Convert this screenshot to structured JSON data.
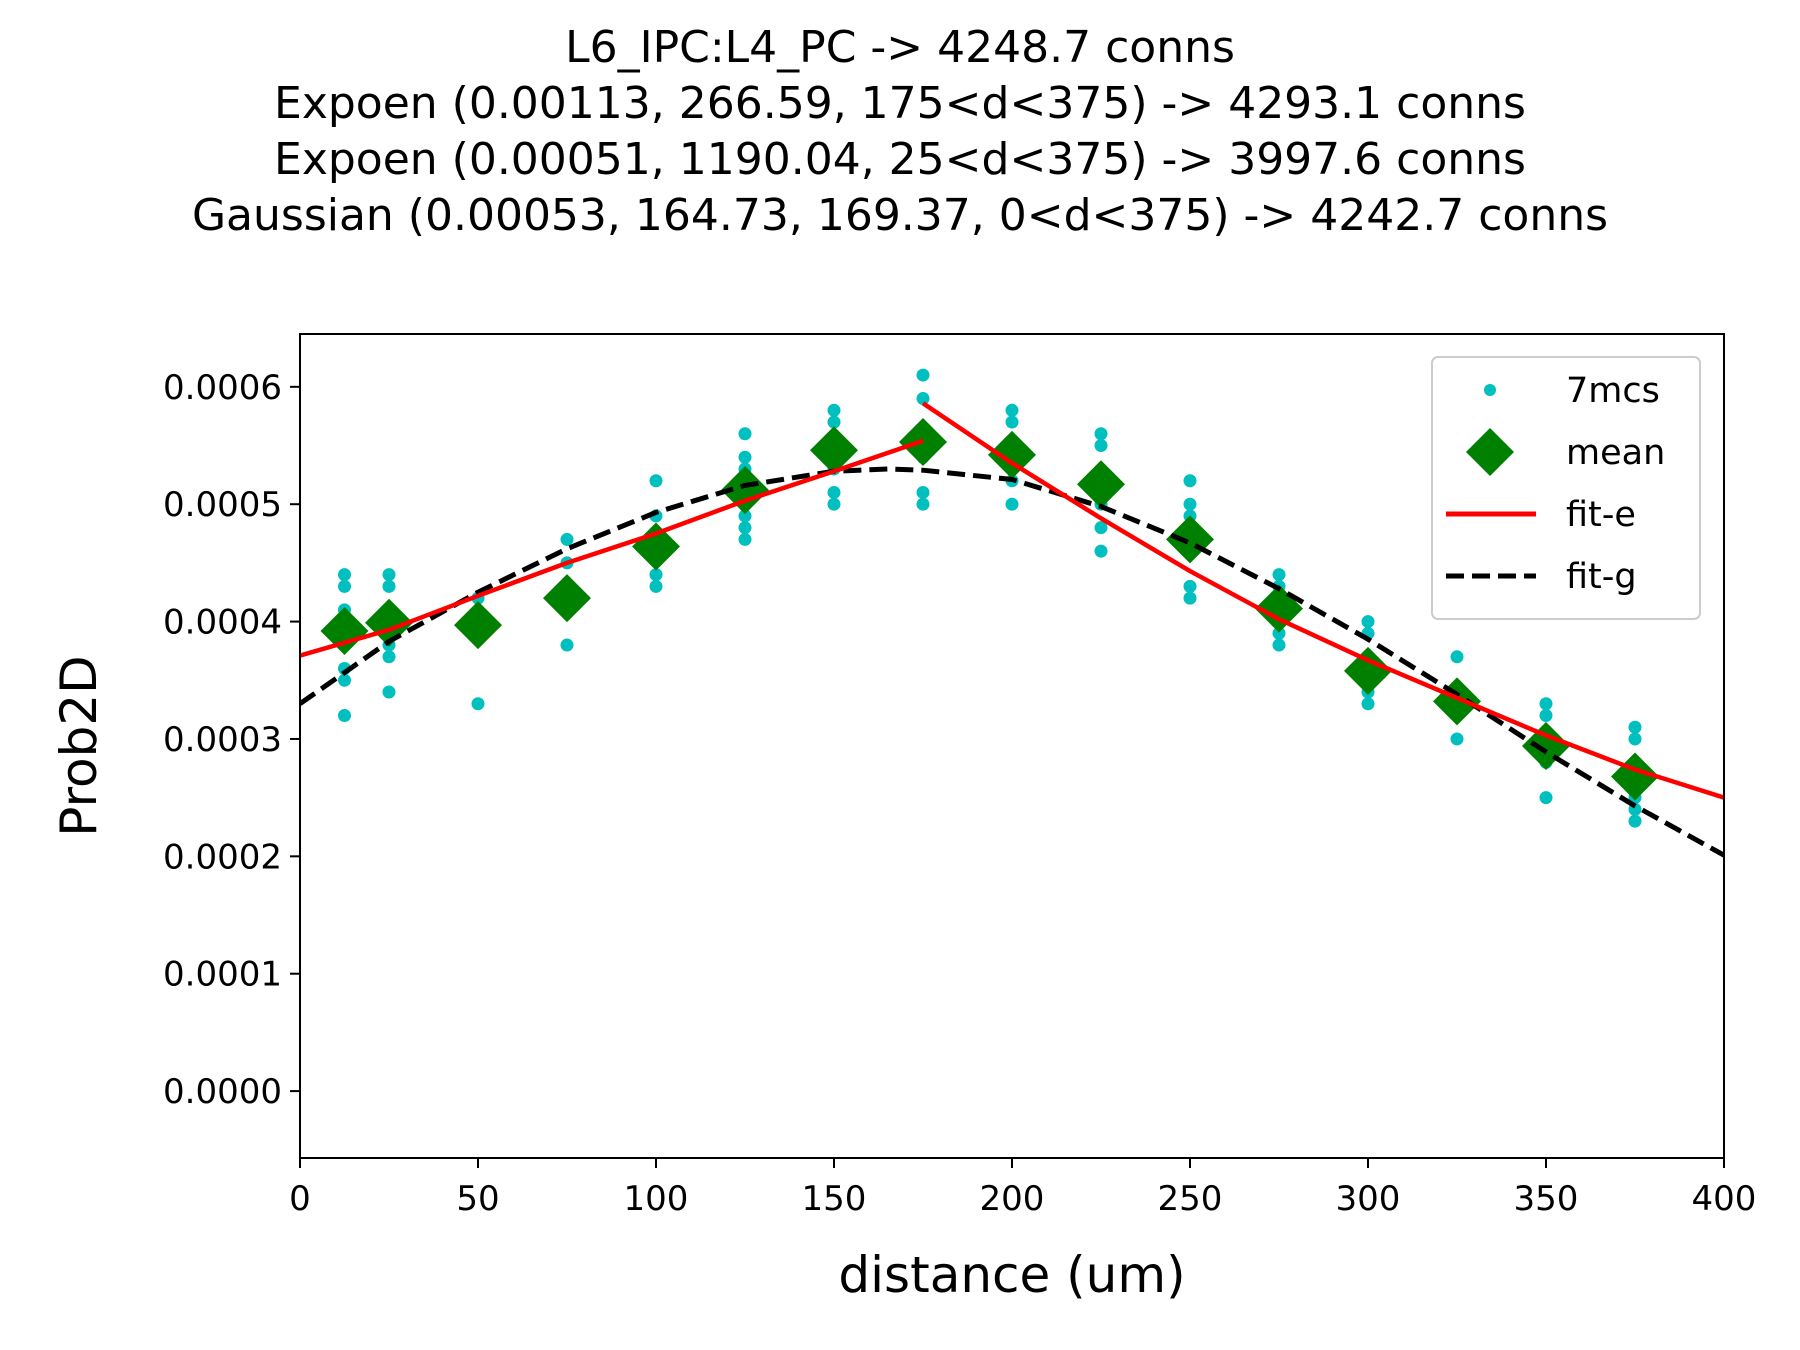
{
  "chart_data": {
    "type": "scatter",
    "title_lines": [
      "L6_IPC:L4_PC -> 4248.7 conns",
      "Expoen (0.00113, 266.59, 175<d<375) -> 4293.1 conns",
      "Expoen (0.00051, 1190.04, 25<d<375) -> 3997.6 conns",
      "Gaussian (0.00053, 164.73, 169.37, 0<d<375) -> 4242.7 conns"
    ],
    "xlabel": "distance (um)",
    "ylabel": "Prob2D",
    "xlim": [
      0,
      400
    ],
    "ylim": [
      -5.7e-05,
      0.000645
    ],
    "xticks": [
      0,
      50,
      100,
      150,
      200,
      250,
      300,
      350,
      400
    ],
    "yticks": [
      0.0,
      0.0001,
      0.0002,
      0.0003,
      0.0004,
      0.0005,
      0.0006
    ],
    "ytick_labels": [
      "0.0000",
      "0.0001",
      "0.0002",
      "0.0003",
      "0.0004",
      "0.0005",
      "0.0006"
    ],
    "legend_position": "upper-right",
    "grid": false,
    "series": [
      {
        "name": "7mcs",
        "kind": "scatter",
        "color": "#00bfbf",
        "points": [
          [
            12.5,
            0.00044
          ],
          [
            12.5,
            0.00043
          ],
          [
            12.5,
            0.00041
          ],
          [
            12.5,
            0.00036
          ],
          [
            12.5,
            0.00035
          ],
          [
            12.5,
            0.00032
          ],
          [
            25,
            0.00044
          ],
          [
            25,
            0.00043
          ],
          [
            25,
            0.00041
          ],
          [
            25,
            0.00038
          ],
          [
            25,
            0.00037
          ],
          [
            25,
            0.00034
          ],
          [
            50,
            0.00042
          ],
          [
            50,
            0.0004
          ],
          [
            50,
            0.00039
          ],
          [
            50,
            0.00033
          ],
          [
            75,
            0.00047
          ],
          [
            75,
            0.00045
          ],
          [
            75,
            0.00042
          ],
          [
            75,
            0.00038
          ],
          [
            100,
            0.00052
          ],
          [
            100,
            0.00049
          ],
          [
            100,
            0.00047
          ],
          [
            100,
            0.00046
          ],
          [
            100,
            0.00044
          ],
          [
            100,
            0.00043
          ],
          [
            125,
            0.00056
          ],
          [
            125,
            0.00054
          ],
          [
            125,
            0.00053
          ],
          [
            125,
            0.00051
          ],
          [
            125,
            0.00049
          ],
          [
            125,
            0.00048
          ],
          [
            125,
            0.00047
          ],
          [
            150,
            0.00058
          ],
          [
            150,
            0.00057
          ],
          [
            150,
            0.00055
          ],
          [
            150,
            0.00053
          ],
          [
            150,
            0.00051
          ],
          [
            150,
            0.0005
          ],
          [
            175,
            0.00061
          ],
          [
            175,
            0.00059
          ],
          [
            175,
            0.00056
          ],
          [
            175,
            0.00054
          ],
          [
            175,
            0.00051
          ],
          [
            175,
            0.0005
          ],
          [
            200,
            0.00058
          ],
          [
            200,
            0.00057
          ],
          [
            200,
            0.00055
          ],
          [
            200,
            0.00054
          ],
          [
            200,
            0.00052
          ],
          [
            200,
            0.0005
          ],
          [
            225,
            0.00056
          ],
          [
            225,
            0.00055
          ],
          [
            225,
            0.00052
          ],
          [
            225,
            0.0005
          ],
          [
            225,
            0.00048
          ],
          [
            225,
            0.00046
          ],
          [
            250,
            0.00052
          ],
          [
            250,
            0.0005
          ],
          [
            250,
            0.00049
          ],
          [
            250,
            0.00047
          ],
          [
            250,
            0.00043
          ],
          [
            250,
            0.00042
          ],
          [
            275,
            0.00044
          ],
          [
            275,
            0.00043
          ],
          [
            275,
            0.00041
          ],
          [
            275,
            0.00039
          ],
          [
            275,
            0.00038
          ],
          [
            300,
            0.0004
          ],
          [
            300,
            0.00039
          ],
          [
            300,
            0.00037
          ],
          [
            300,
            0.00035
          ],
          [
            300,
            0.00034
          ],
          [
            300,
            0.00033
          ],
          [
            325,
            0.00037
          ],
          [
            325,
            0.00034
          ],
          [
            325,
            0.00033
          ],
          [
            325,
            0.00032
          ],
          [
            325,
            0.0003
          ],
          [
            350,
            0.00033
          ],
          [
            350,
            0.00032
          ],
          [
            350,
            0.0003
          ],
          [
            350,
            0.00029
          ],
          [
            350,
            0.00028
          ],
          [
            350,
            0.00025
          ],
          [
            375,
            0.00031
          ],
          [
            375,
            0.0003
          ],
          [
            375,
            0.00027
          ],
          [
            375,
            0.00025
          ],
          [
            375,
            0.00024
          ],
          [
            375,
            0.00023
          ]
        ]
      },
      {
        "name": "mean",
        "kind": "diamond",
        "color": "#008000",
        "points": [
          [
            12.5,
            0.000392
          ],
          [
            25,
            0.000399
          ],
          [
            50,
            0.000397
          ],
          [
            75,
            0.00042
          ],
          [
            100,
            0.000464
          ],
          [
            125,
            0.000512
          ],
          [
            150,
            0.000546
          ],
          [
            175,
            0.000553
          ],
          [
            200,
            0.000542
          ],
          [
            225,
            0.000517
          ],
          [
            250,
            0.00047
          ],
          [
            275,
            0.000411
          ],
          [
            300,
            0.000358
          ],
          [
            325,
            0.000332
          ],
          [
            350,
            0.000294
          ],
          [
            375,
            0.000268
          ]
        ]
      },
      {
        "name": "fit-e",
        "kind": "line",
        "color": "#ff0000",
        "segments": [
          [
            [
              0,
              0.000371
            ],
            [
              25,
              0.000393
            ],
            [
              50,
              0.000422
            ],
            [
              75,
              0.00045
            ],
            [
              100,
              0.000475
            ],
            [
              125,
              0.000503
            ],
            [
              150,
              0.000528
            ],
            [
              175,
              0.000554
            ]
          ],
          [
            [
              175,
              0.000586
            ],
            [
              200,
              0.000535
            ],
            [
              225,
              0.000488
            ],
            [
              250,
              0.000443
            ],
            [
              275,
              0.000402
            ],
            [
              300,
              0.000367
            ],
            [
              325,
              0.000335
            ],
            [
              350,
              0.000303
            ],
            [
              375,
              0.000274
            ],
            [
              400,
              0.00025
            ]
          ]
        ]
      },
      {
        "name": "fit-g",
        "kind": "dashed-line",
        "color": "#000000",
        "points": [
          [
            0,
            0.00033
          ],
          [
            25,
            0.000383
          ],
          [
            50,
            0.000425
          ],
          [
            75,
            0.000462
          ],
          [
            100,
            0.000493
          ],
          [
            125,
            0.000516
          ],
          [
            150,
            0.000528
          ],
          [
            165,
            0.00053
          ],
          [
            175,
            0.000529
          ],
          [
            200,
            0.000521
          ],
          [
            225,
            0.000498
          ],
          [
            250,
            0.000467
          ],
          [
            275,
            0.000428
          ],
          [
            300,
            0.000385
          ],
          [
            325,
            0.000338
          ],
          [
            350,
            0.000289
          ],
          [
            375,
            0.000243
          ],
          [
            400,
            0.000201
          ]
        ]
      }
    ]
  }
}
